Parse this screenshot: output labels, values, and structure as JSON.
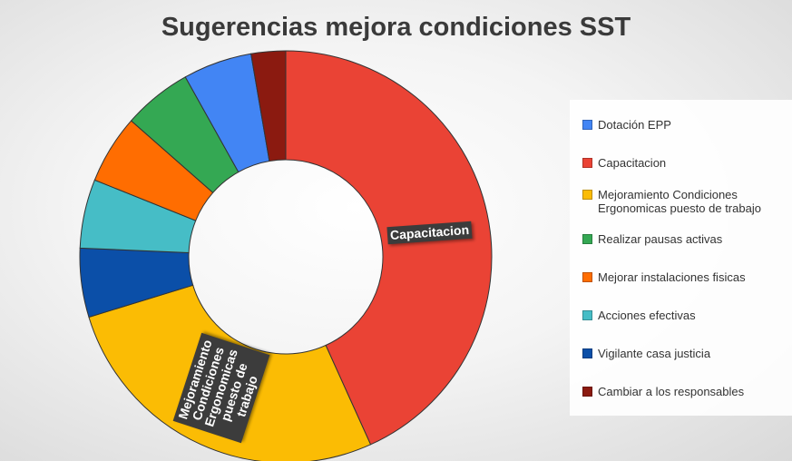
{
  "chart_data": {
    "type": "donut",
    "title": "Sugerencias mejora condiciones SST",
    "categories": [
      "Dotación EPP",
      "Capacitacion",
      "Mejoramiento Condiciones Ergonomicas puesto de trabajo",
      "Realizar pausas activas",
      "Mejorar instalaciones fisicas",
      "Acciones efectivas",
      "Vigilante casa justicia",
      "Cambiar a los responsables"
    ],
    "values": [
      2,
      16,
      10,
      2,
      2,
      2,
      2,
      1
    ],
    "colors": [
      "#4285f4",
      "#ea4335",
      "#fbbc04",
      "#34a853",
      "#ff6d01",
      "#46bdc6",
      "#0b4fa8",
      "#8b1a10"
    ],
    "legend": "right"
  }
}
